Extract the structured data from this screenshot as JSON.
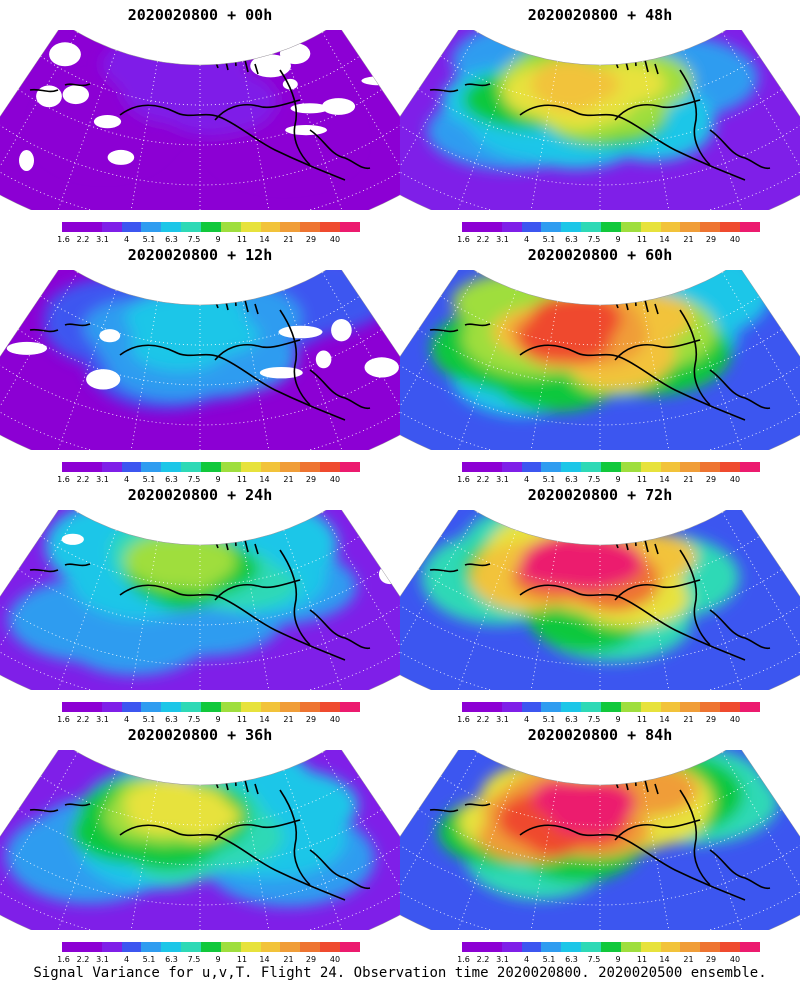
{
  "panels": [
    {
      "title": "2020020800 + 00h",
      "intensity": 0.1
    },
    {
      "title": "2020020800 + 48h",
      "intensity": 0.62
    },
    {
      "title": "2020020800 + 12h",
      "intensity": 0.26
    },
    {
      "title": "2020020800 + 60h",
      "intensity": 0.72
    },
    {
      "title": "2020020800 + 24h",
      "intensity": 0.4
    },
    {
      "title": "2020020800 + 72h",
      "intensity": 0.8
    },
    {
      "title": "2020020800 + 36h",
      "intensity": 0.5
    },
    {
      "title": "2020020800 + 84h",
      "intensity": 0.86
    }
  ],
  "colorbar": {
    "colors": [
      "#8c00d4",
      "#8c00d4",
      "#7f1fe8",
      "#3c56f0",
      "#2f9cf0",
      "#1cc6e8",
      "#2ed9b6",
      "#11c83c",
      "#9fde3e",
      "#e7e23c",
      "#f2c33a",
      "#f09d38",
      "#ee7431",
      "#ef4a2f",
      "#ec1a6e"
    ],
    "labels": [
      "1.6",
      "2.2",
      "3.1",
      "4",
      "5.1",
      "6.3",
      "7.5",
      "9",
      "11",
      "14",
      "21",
      "29",
      "40"
    ]
  },
  "footer": "Signal Variance for u,v,T. Flight 24. Observation time 2020020800. 2020020500 ensemble."
}
